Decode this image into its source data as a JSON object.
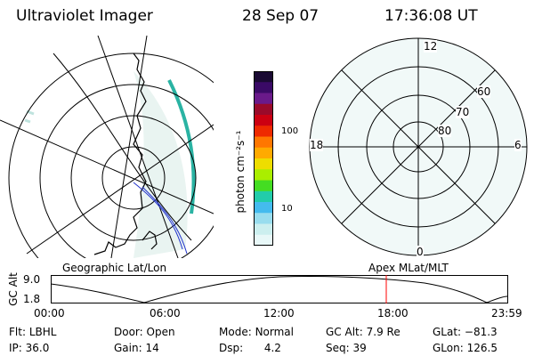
{
  "header": {
    "instrument": "Ultraviolet Imager",
    "date": "28 Sep 07",
    "time": "17:36:08 UT"
  },
  "left_panel": {
    "caption": "Geographic Lat/Lon"
  },
  "right_panel": {
    "caption": "Apex MLat/MLT",
    "mlt_labels": [
      "12",
      "18",
      "6",
      "0"
    ],
    "lat_labels": [
      "60",
      "70",
      "80"
    ]
  },
  "colorbar": {
    "unit_label": "photon cm⁻²s⁻¹",
    "ticks": [
      "100",
      "10"
    ],
    "colors": [
      "#1a0a33",
      "#3a0a66",
      "#6a1a8a",
      "#9a0a2a",
      "#cc0011",
      "#ee2a00",
      "#ff7700",
      "#ffaa00",
      "#eedd00",
      "#aaee00",
      "#44dd22",
      "#22ccaa",
      "#44bbee",
      "#99ddee",
      "#ccefef",
      "#e8f8f8"
    ]
  },
  "gc_alt_plot": {
    "axis_label": "GC Alt",
    "y_ticks": [
      "9.0",
      "1.8"
    ],
    "x_ticks": [
      "00:00",
      "06:00",
      "12:00",
      "18:00",
      "23:59"
    ],
    "current_time_marker": "17:36",
    "marker_color": "#ff0000"
  },
  "info": {
    "filter_label": "Flt:",
    "filter_value": "LBHL",
    "ip_label": "IP:",
    "ip_value": "36.0",
    "door_label": "Door:",
    "door_value": "Open",
    "gain_label": "Gain:",
    "gain_value": "14",
    "mode_label": "Mode:",
    "mode_value": "Normal",
    "dsp_label": "Dsp:",
    "dsp_value": "4.2",
    "gcalt_label": "GC Alt:",
    "gcalt_value": "7.9 Re",
    "seq_label": "Seq:",
    "seq_value": "39",
    "glat_label": "GLat:",
    "glat_value": "−81.3",
    "glon_label": "GLon:",
    "glon_value": "126.5"
  }
}
